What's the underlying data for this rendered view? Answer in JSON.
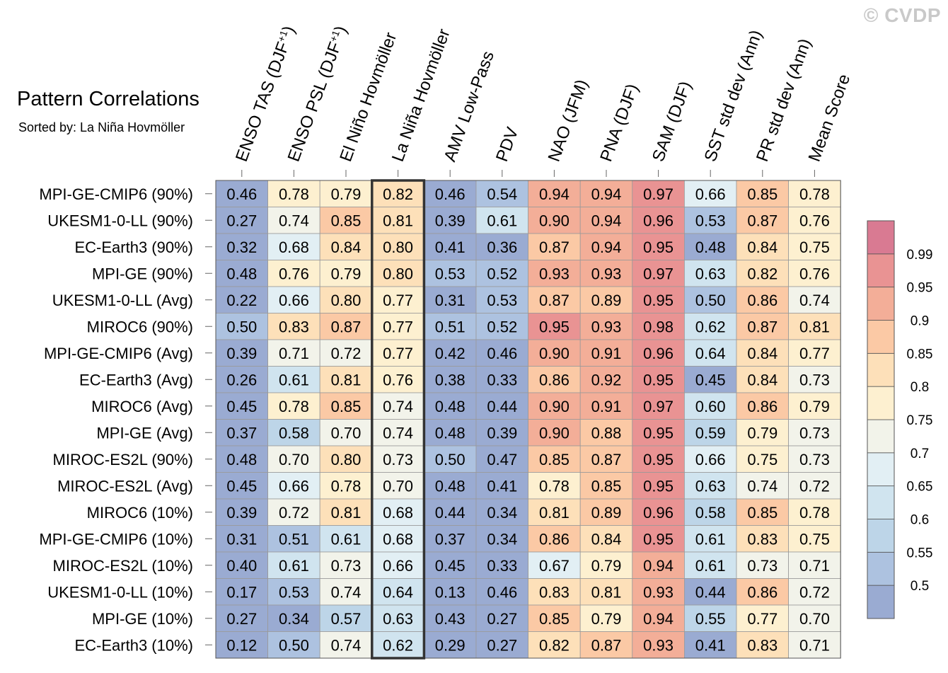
{
  "watermark": "© CVDP",
  "chart_data": {
    "type": "heatmap",
    "title": "Pattern Correlations",
    "subtitle": "Sorted by: La Niña Hovmöller",
    "columns": [
      "ENSO TAS (DJF+1)",
      "ENSO PSL (DJF+1)",
      "El Niño Hovmöller",
      "La Niña Hovmöller",
      "AMV Low-Pass",
      "PDV",
      "NAO (JFM)",
      "PNA (DJF)",
      "SAM (DJF)",
      "SST std dev (Ann)",
      "PR std dev (Ann)",
      "Mean Score"
    ],
    "highlighted_column": "La Niña Hovmöller",
    "rows": [
      {
        "label": "MPI-GE-CMIP6 (90%)",
        "values": [
          0.46,
          0.78,
          0.79,
          0.82,
          0.46,
          0.54,
          0.94,
          0.94,
          0.97,
          0.66,
          0.85,
          0.78
        ]
      },
      {
        "label": "UKESM1-0-LL (90%)",
        "values": [
          0.27,
          0.74,
          0.85,
          0.81,
          0.39,
          0.61,
          0.9,
          0.94,
          0.96,
          0.53,
          0.87,
          0.76
        ]
      },
      {
        "label": "EC-Earth3 (90%)",
        "values": [
          0.32,
          0.68,
          0.84,
          0.8,
          0.41,
          0.36,
          0.87,
          0.94,
          0.95,
          0.48,
          0.84,
          0.75
        ]
      },
      {
        "label": "MPI-GE (90%)",
        "values": [
          0.48,
          0.76,
          0.79,
          0.8,
          0.53,
          0.52,
          0.93,
          0.93,
          0.97,
          0.63,
          0.82,
          0.76
        ]
      },
      {
        "label": "UKESM1-0-LL (Avg)",
        "values": [
          0.22,
          0.66,
          0.8,
          0.77,
          0.31,
          0.53,
          0.87,
          0.89,
          0.95,
          0.5,
          0.86,
          0.74
        ]
      },
      {
        "label": "MIROC6 (90%)",
        "values": [
          0.5,
          0.83,
          0.87,
          0.77,
          0.51,
          0.52,
          0.95,
          0.93,
          0.98,
          0.62,
          0.87,
          0.81
        ]
      },
      {
        "label": "MPI-GE-CMIP6 (Avg)",
        "values": [
          0.39,
          0.71,
          0.72,
          0.77,
          0.42,
          0.46,
          0.9,
          0.91,
          0.96,
          0.64,
          0.84,
          0.77
        ]
      },
      {
        "label": "EC-Earth3 (Avg)",
        "values": [
          0.26,
          0.61,
          0.81,
          0.76,
          0.38,
          0.33,
          0.86,
          0.92,
          0.95,
          0.45,
          0.84,
          0.73
        ]
      },
      {
        "label": "MIROC6 (Avg)",
        "values": [
          0.45,
          0.78,
          0.85,
          0.74,
          0.48,
          0.44,
          0.9,
          0.91,
          0.97,
          0.6,
          0.86,
          0.79
        ]
      },
      {
        "label": "MPI-GE (Avg)",
        "values": [
          0.37,
          0.58,
          0.7,
          0.74,
          0.48,
          0.39,
          0.9,
          0.88,
          0.95,
          0.59,
          0.79,
          0.73
        ]
      },
      {
        "label": "MIROC-ES2L (90%)",
        "values": [
          0.48,
          0.7,
          0.8,
          0.73,
          0.5,
          0.47,
          0.85,
          0.87,
          0.95,
          0.66,
          0.75,
          0.73
        ]
      },
      {
        "label": "MIROC-ES2L (Avg)",
        "values": [
          0.45,
          0.66,
          0.78,
          0.7,
          0.48,
          0.41,
          0.78,
          0.85,
          0.95,
          0.63,
          0.74,
          0.72
        ]
      },
      {
        "label": "MIROC6 (10%)",
        "values": [
          0.39,
          0.72,
          0.81,
          0.68,
          0.44,
          0.34,
          0.81,
          0.89,
          0.96,
          0.58,
          0.85,
          0.78
        ]
      },
      {
        "label": "MPI-GE-CMIP6 (10%)",
        "values": [
          0.31,
          0.51,
          0.61,
          0.68,
          0.37,
          0.34,
          0.86,
          0.84,
          0.95,
          0.61,
          0.83,
          0.75
        ]
      },
      {
        "label": "MIROC-ES2L (10%)",
        "values": [
          0.4,
          0.61,
          0.73,
          0.66,
          0.45,
          0.33,
          0.67,
          0.79,
          0.94,
          0.61,
          0.73,
          0.71
        ]
      },
      {
        "label": "UKESM1-0-LL (10%)",
        "values": [
          0.17,
          0.53,
          0.74,
          0.64,
          0.13,
          0.46,
          0.83,
          0.81,
          0.93,
          0.44,
          0.86,
          0.72
        ]
      },
      {
        "label": "MPI-GE (10%)",
        "values": [
          0.27,
          0.34,
          0.57,
          0.63,
          0.43,
          0.27,
          0.85,
          0.79,
          0.94,
          0.55,
          0.77,
          0.7
        ]
      },
      {
        "label": "EC-Earth3 (10%)",
        "values": [
          0.12,
          0.5,
          0.74,
          0.62,
          0.29,
          0.27,
          0.82,
          0.87,
          0.93,
          0.41,
          0.83,
          0.71
        ]
      }
    ],
    "colorbar": {
      "levels": [
        0.5,
        0.55,
        0.6,
        0.65,
        0.7,
        0.75,
        0.8,
        0.85,
        0.9,
        0.95,
        0.99
      ],
      "tick_labels": [
        "0.5",
        "0.55",
        "0.6",
        "0.65",
        "0.7",
        "0.75",
        "0.8",
        "0.85",
        "0.9",
        "0.95",
        "0.99"
      ],
      "colors": [
        "#9aabd2",
        "#adc2e0",
        "#bdd5e8",
        "#d0e4ef",
        "#e2eff4",
        "#f2f3ea",
        "#fdf0d0",
        "#fde0b9",
        "#fbc9a5",
        "#f3ae98",
        "#e99393",
        "#d97a92"
      ]
    }
  }
}
